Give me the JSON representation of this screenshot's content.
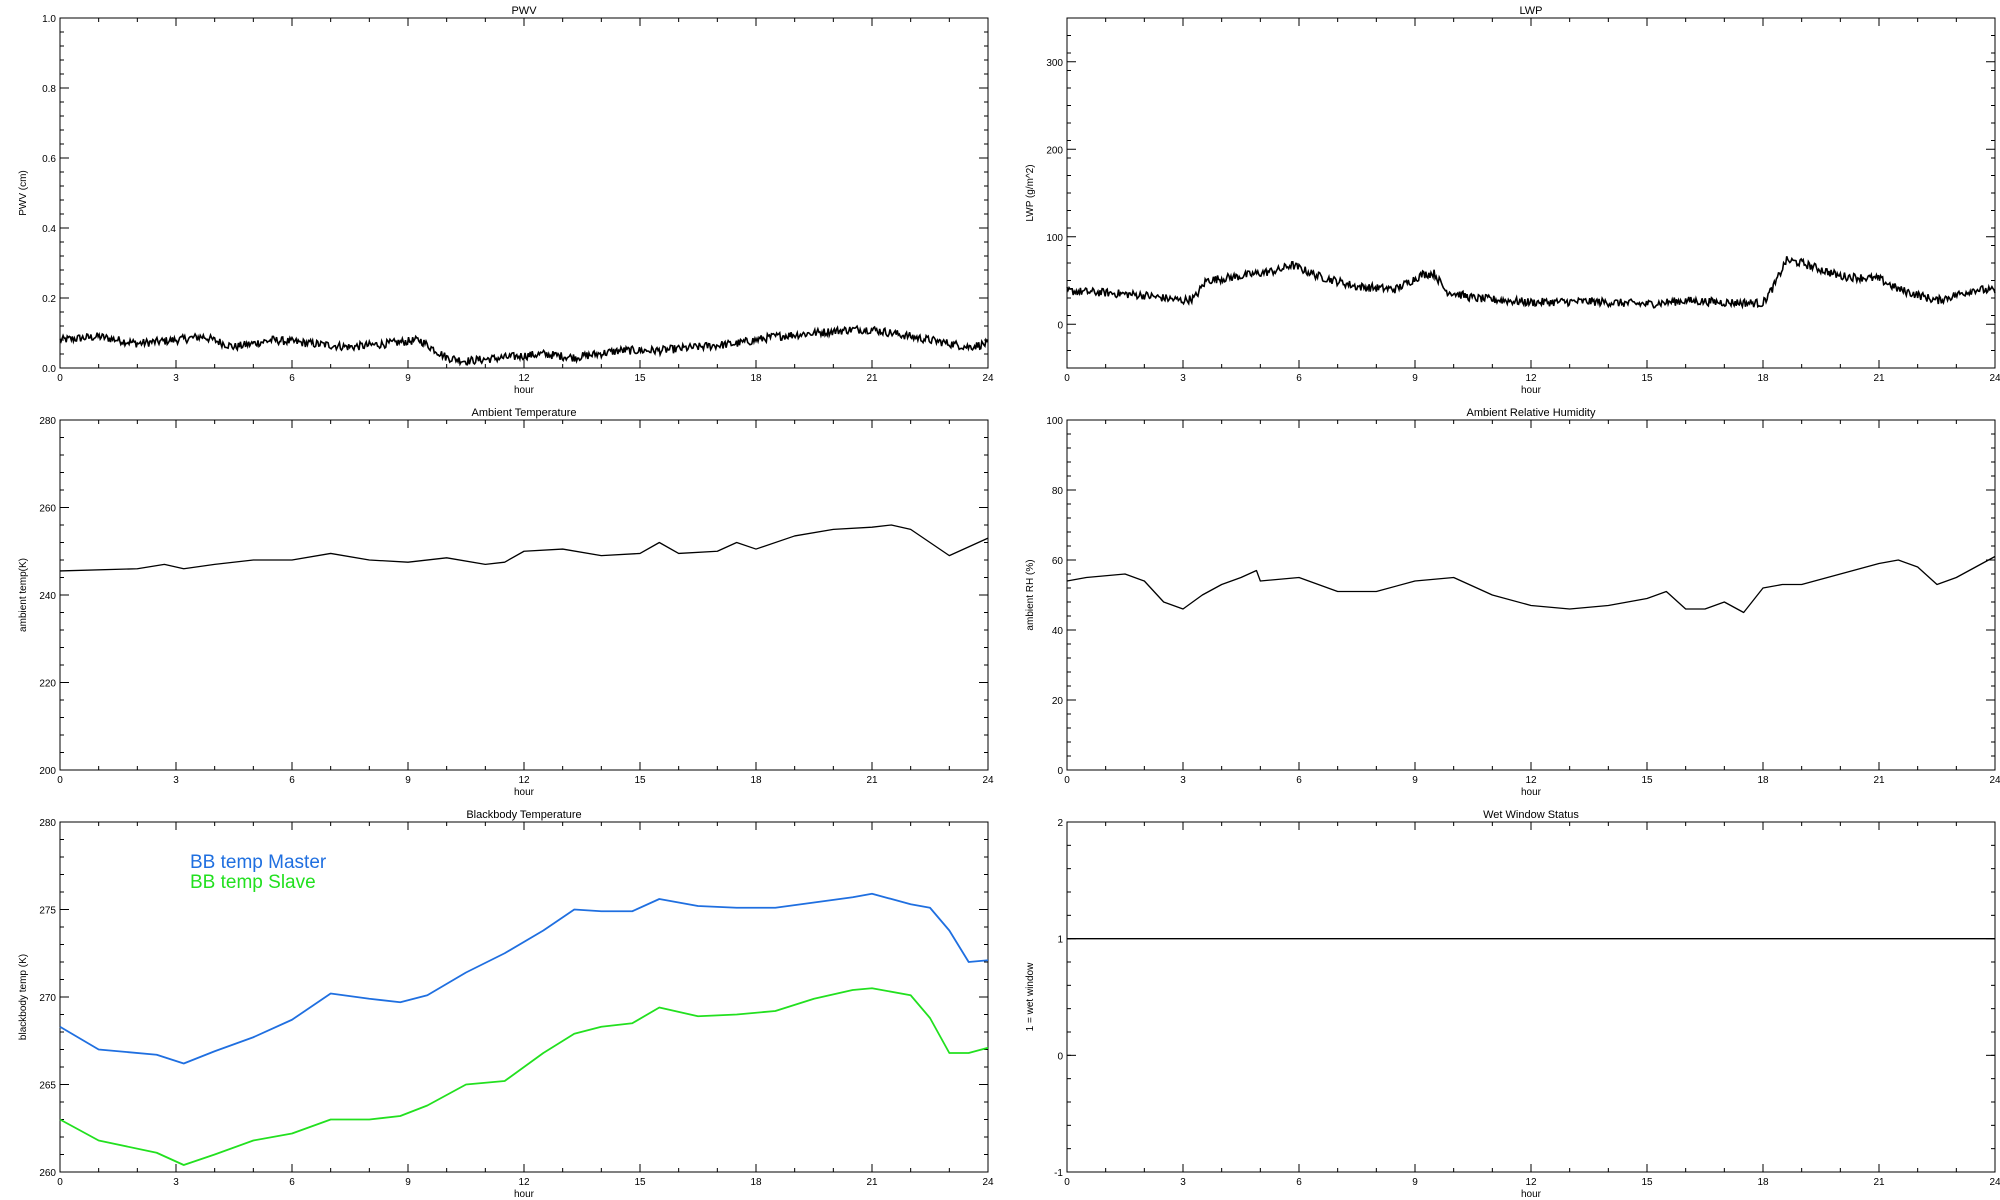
{
  "chart_data": [
    {
      "type": "line",
      "title": "PWV",
      "xlabel": "hour",
      "ylabel": "PWV (cm)",
      "xlim": [
        0,
        24
      ],
      "ylim": [
        0.0,
        1.0
      ],
      "xticks": [
        0,
        3,
        6,
        9,
        12,
        15,
        18,
        21,
        24
      ],
      "yticks": [
        0.0,
        0.2,
        0.4,
        0.6,
        0.8,
        1.0
      ],
      "ytick_labels": [
        "0.0",
        "0.2",
        "0.4",
        "0.6",
        "0.8",
        "1.0"
      ],
      "series": [
        {
          "color": "#000000",
          "noisy": true,
          "x": [
            0,
            1,
            2,
            3,
            3.7,
            4.5,
            5.5,
            6.5,
            7.5,
            8.5,
            9.3,
            10,
            10.5,
            11.5,
            12.5,
            13.3,
            14.5,
            15.5,
            16.5,
            17.5,
            18.5,
            19.5,
            20.5,
            21,
            21.5,
            22.5,
            23.5,
            24
          ],
          "y": [
            0.08,
            0.09,
            0.07,
            0.08,
            0.09,
            0.06,
            0.08,
            0.07,
            0.06,
            0.07,
            0.08,
            0.03,
            0.02,
            0.03,
            0.04,
            0.03,
            0.05,
            0.05,
            0.06,
            0.07,
            0.09,
            0.1,
            0.11,
            0.11,
            0.1,
            0.08,
            0.06,
            0.07
          ]
        }
      ]
    },
    {
      "type": "line",
      "title": "LWP",
      "xlabel": "hour",
      "ylabel": "LWP (g/m^2)",
      "xlim": [
        0,
        24
      ],
      "ylim": [
        -50,
        350
      ],
      "xticks": [
        0,
        3,
        6,
        9,
        12,
        15,
        18,
        21,
        24
      ],
      "yticks": [
        0,
        100,
        200,
        300
      ],
      "ytick_labels": [
        "0",
        "100",
        "200",
        "300"
      ],
      "series": [
        {
          "color": "#000000",
          "noisy": true,
          "x": [
            0,
            1,
            2,
            3,
            3.3,
            3.6,
            4.5,
            5.5,
            5.8,
            6.5,
            7.5,
            8.5,
            9.2,
            9.5,
            9.8,
            10.5,
            12,
            13.5,
            15,
            16,
            17,
            18,
            18.3,
            18.6,
            19,
            20,
            21,
            21.5,
            22.5,
            23.5,
            24
          ],
          "y": [
            38,
            36,
            33,
            27,
            30,
            50,
            55,
            62,
            68,
            55,
            43,
            40,
            57,
            58,
            38,
            30,
            25,
            26,
            23,
            27,
            25,
            24,
            45,
            73,
            70,
            55,
            52,
            40,
            27,
            40,
            38
          ]
        }
      ]
    },
    {
      "type": "line",
      "title": "Ambient Temperature",
      "xlabel": "hour",
      "ylabel": "ambient temp(K)",
      "xlim": [
        0,
        24
      ],
      "ylim": [
        200,
        280
      ],
      "xticks": [
        0,
        3,
        6,
        9,
        12,
        15,
        18,
        21,
        24
      ],
      "yticks": [
        200,
        220,
        240,
        260,
        280
      ],
      "ytick_labels": [
        "200",
        "220",
        "240",
        "260",
        "280"
      ],
      "series": [
        {
          "color": "#000000",
          "noisy": false,
          "x": [
            0,
            2,
            2.7,
            3.2,
            4,
            5,
            6,
            7,
            8,
            9,
            10,
            11,
            11.5,
            12,
            13,
            14,
            15,
            15.5,
            16,
            17,
            17.5,
            18,
            19,
            20,
            21,
            21.5,
            22,
            22.5,
            23,
            23.5,
            24
          ],
          "y": [
            245.5,
            246,
            247,
            246,
            247,
            248,
            248,
            249.5,
            248,
            247.5,
            248.5,
            247,
            247.5,
            250,
            250.5,
            249,
            249.5,
            252,
            249.5,
            250,
            252,
            250.5,
            253.5,
            255,
            255.5,
            256,
            255,
            252,
            249,
            251,
            253
          ]
        }
      ]
    },
    {
      "type": "line",
      "title": "Ambient Relative Humidity",
      "xlabel": "hour",
      "ylabel": "ambient RH (%)",
      "xlim": [
        0,
        24
      ],
      "ylim": [
        0,
        100
      ],
      "xticks": [
        0,
        3,
        6,
        9,
        12,
        15,
        18,
        21,
        24
      ],
      "yticks": [
        0,
        20,
        40,
        60,
        80,
        100
      ],
      "ytick_labels": [
        "0",
        "20",
        "40",
        "60",
        "80",
        "100"
      ],
      "series": [
        {
          "color": "#000000",
          "noisy": false,
          "x": [
            0,
            0.5,
            1.5,
            2,
            2.5,
            3,
            3.5,
            4,
            4.5,
            4.9,
            5,
            6,
            7,
            8,
            9,
            10,
            11,
            12,
            13,
            14,
            15,
            15.5,
            16,
            16.5,
            17,
            17.5,
            18,
            18.5,
            19,
            20,
            21,
            21.5,
            22,
            22.5,
            23,
            23.5,
            24
          ],
          "y": [
            54,
            55,
            56,
            54,
            48,
            46,
            50,
            53,
            55,
            57,
            54,
            55,
            51,
            51,
            54,
            55,
            50,
            47,
            46,
            47,
            49,
            51,
            46,
            46,
            48,
            45,
            52,
            53,
            53,
            56,
            59,
            60,
            58,
            53,
            55,
            58,
            61
          ]
        }
      ]
    },
    {
      "type": "line",
      "title": "Blackbody Temperature",
      "xlabel": "hour",
      "ylabel": "blackbody temp (K)",
      "xlim": [
        0,
        24
      ],
      "ylim": [
        260,
        280
      ],
      "xticks": [
        0,
        3,
        6,
        9,
        12,
        15,
        18,
        21,
        24
      ],
      "yticks": [
        260,
        265,
        270,
        275,
        280
      ],
      "ytick_labels": [
        "260",
        "265",
        "270",
        "275",
        "280"
      ],
      "legend": [
        {
          "label": "BB temp Master",
          "color": "#1f6fe0"
        },
        {
          "label": "BB temp Slave",
          "color": "#22e01f"
        }
      ],
      "series": [
        {
          "name": "BB temp Master",
          "color": "#1f6fe0",
          "noisy": false,
          "x": [
            0,
            1,
            2.5,
            3.2,
            4,
            5,
            6,
            7,
            8,
            8.8,
            9.5,
            10.5,
            11.5,
            12.5,
            13.3,
            14,
            14.8,
            15.5,
            16.5,
            17.5,
            18.5,
            19.5,
            20.5,
            21,
            22,
            22.5,
            23,
            23.5,
            24
          ],
          "y": [
            268.3,
            267,
            266.7,
            266.2,
            266.9,
            267.7,
            268.7,
            270.2,
            269.9,
            269.7,
            270.1,
            271.4,
            272.5,
            273.8,
            275,
            274.9,
            274.9,
            275.6,
            275.2,
            275.1,
            275.1,
            275.4,
            275.7,
            275.9,
            275.3,
            275.1,
            273.8,
            272,
            272.1
          ]
        },
        {
          "name": "BB temp Slave",
          "color": "#22e01f",
          "noisy": false,
          "x": [
            0,
            1,
            2.5,
            3.2,
            4,
            5,
            6,
            7,
            8,
            8.8,
            9.5,
            10.5,
            11.5,
            12.5,
            13.3,
            14,
            14.8,
            15.5,
            16.5,
            17.5,
            18.5,
            19.5,
            20.5,
            21,
            22,
            22.5,
            23,
            23.5,
            24
          ],
          "y": [
            263,
            261.8,
            261.1,
            260.4,
            261,
            261.8,
            262.2,
            263,
            263,
            263.2,
            263.8,
            265,
            265.2,
            266.8,
            267.9,
            268.3,
            268.5,
            269.4,
            268.9,
            269,
            269.2,
            269.9,
            270.4,
            270.5,
            270.1,
            268.8,
            266.8,
            266.8,
            267.1
          ]
        }
      ]
    },
    {
      "type": "line",
      "title": "Wet Window Status",
      "xlabel": "hour",
      "ylabel": "1 = wet window",
      "xlim": [
        0,
        24
      ],
      "ylim": [
        -1,
        2
      ],
      "xticks": [
        0,
        3,
        6,
        9,
        12,
        15,
        18,
        21,
        24
      ],
      "yticks": [
        -1,
        0,
        1,
        2
      ],
      "ytick_labels": [
        "-1",
        "0",
        "1",
        "2"
      ],
      "series": [
        {
          "color": "#000000",
          "noisy": false,
          "x": [
            0,
            24
          ],
          "y": [
            1,
            1
          ]
        }
      ]
    }
  ]
}
